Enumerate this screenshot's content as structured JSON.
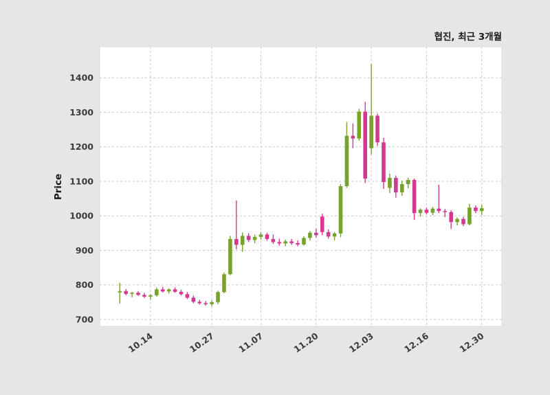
{
  "chart_data": {
    "type": "candlestick",
    "title": "협진, 최근 3개월",
    "ylabel": "Price",
    "legend": "none",
    "grid": "dashed-both-axes",
    "ylim": [
      680,
      1490
    ],
    "yticks": [
      700,
      800,
      900,
      1000,
      1100,
      1200,
      1300,
      1400
    ],
    "xticks": [
      {
        "index": 5,
        "label": "10.14"
      },
      {
        "index": 15,
        "label": "10.27"
      },
      {
        "index": 23,
        "label": "11.07"
      },
      {
        "index": 32,
        "label": "11.20"
      },
      {
        "index": 41,
        "label": "12.03"
      },
      {
        "index": 50,
        "label": "12.16"
      },
      {
        "index": 59,
        "label": "12.30"
      }
    ],
    "colors": {
      "up": "#76a22d",
      "down": "#d5388f",
      "figure_bg": "#e6e6e6",
      "plot_bg": "#ffffff",
      "grid": "#c9c9c9",
      "plot_border": "#dcdcdc",
      "tick_text": "#3a3a3a",
      "title_text": "#1a1a1a"
    },
    "candles_ohlc": [
      [
        778,
        806,
        746,
        782
      ],
      [
        782,
        788,
        770,
        774
      ],
      [
        774,
        780,
        764,
        777
      ],
      [
        777,
        782,
        768,
        771
      ],
      [
        771,
        777,
        762,
        766
      ],
      [
        766,
        773,
        757,
        770
      ],
      [
        770,
        792,
        766,
        787
      ],
      [
        787,
        794,
        778,
        781
      ],
      [
        781,
        790,
        775,
        787
      ],
      [
        787,
        793,
        777,
        780
      ],
      [
        780,
        786,
        769,
        773
      ],
      [
        773,
        779,
        759,
        763
      ],
      [
        763,
        769,
        747,
        751
      ],
      [
        751,
        757,
        743,
        747
      ],
      [
        747,
        753,
        740,
        744
      ],
      [
        744,
        755,
        738,
        750
      ],
      [
        750,
        783,
        744,
        779
      ],
      [
        779,
        836,
        776,
        831
      ],
      [
        831,
        942,
        828,
        933
      ],
      [
        933,
        1045,
        903,
        916
      ],
      [
        916,
        952,
        896,
        942
      ],
      [
        942,
        950,
        924,
        930
      ],
      [
        930,
        946,
        921,
        939
      ],
      [
        939,
        953,
        931,
        946
      ],
      [
        946,
        951,
        928,
        933
      ],
      [
        933,
        946,
        919,
        924
      ],
      [
        924,
        934,
        914,
        920
      ],
      [
        920,
        931,
        912,
        926
      ],
      [
        926,
        933,
        916,
        921
      ],
      [
        921,
        929,
        912,
        917
      ],
      [
        917,
        941,
        914,
        936
      ],
      [
        936,
        956,
        928,
        951
      ],
      [
        951,
        963,
        937,
        944
      ],
      [
        998,
        1006,
        944,
        953
      ],
      [
        953,
        961,
        934,
        940
      ],
      [
        940,
        953,
        929,
        949
      ],
      [
        949,
        1092,
        938,
        1086
      ],
      [
        1086,
        1272,
        1081,
        1232
      ],
      [
        1232,
        1268,
        1196,
        1224
      ],
      [
        1224,
        1310,
        1218,
        1302
      ],
      [
        1302,
        1330,
        1095,
        1108
      ],
      [
        1196,
        1440,
        1178,
        1290
      ],
      [
        1290,
        1296,
        1203,
        1213
      ],
      [
        1213,
        1226,
        1078,
        1098
      ],
      [
        1081,
        1122,
        1066,
        1110
      ],
      [
        1110,
        1117,
        1053,
        1068
      ],
      [
        1068,
        1102,
        1058,
        1092
      ],
      [
        1092,
        1110,
        1080,
        1104
      ],
      [
        1104,
        1108,
        988,
        1008
      ],
      [
        1008,
        1022,
        998,
        1018
      ],
      [
        1018,
        1024,
        1004,
        1009
      ],
      [
        1009,
        1026,
        1002,
        1021
      ],
      [
        1021,
        1090,
        1008,
        1014
      ],
      [
        1014,
        1020,
        996,
        1011
      ],
      [
        1011,
        1016,
        962,
        982
      ],
      [
        982,
        996,
        972,
        991
      ],
      [
        991,
        997,
        970,
        976
      ],
      [
        976,
        1035,
        972,
        1024
      ],
      [
        1024,
        1030,
        1008,
        1014
      ],
      [
        1014,
        1032,
        1002,
        1022
      ]
    ]
  }
}
